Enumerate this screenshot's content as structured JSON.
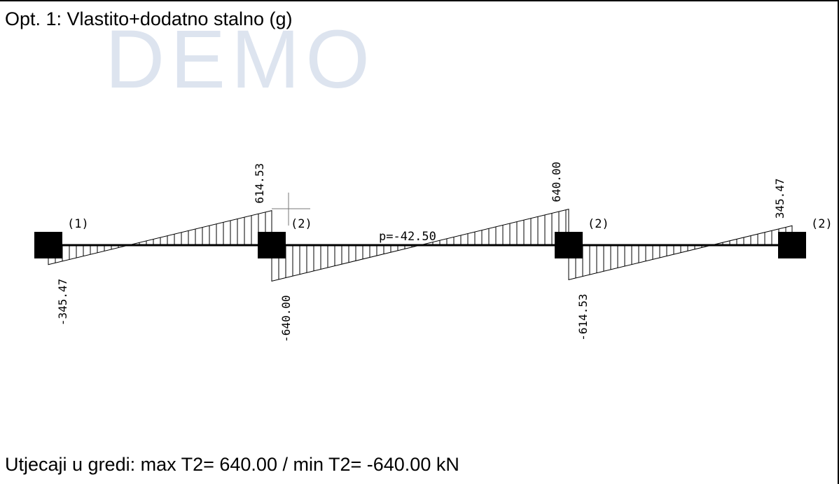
{
  "title": "Opt. 1: Vlastito+dodatno stalno (g)",
  "watermark": "DEMO",
  "summary": "Utjecaji u gredi: max T2= 640.00 / min T2= -640.00 kN",
  "load_label": "p=-42.50",
  "supports": [
    "(1)",
    "(2)",
    "(2)",
    "(2)"
  ],
  "spans": [
    {
      "left_value": "-345.47",
      "right_value": "614.53"
    },
    {
      "left_value": "-640.00",
      "right_value": "640.00"
    },
    {
      "left_value": "-614.53",
      "right_value": "345.47"
    }
  ],
  "chart_data": {
    "type": "line",
    "series": [
      {
        "values": [
          [
            0,
            -345.47
          ],
          [
            1,
            614.53
          ]
        ]
      },
      {
        "values": [
          [
            1,
            -640.0
          ],
          [
            2,
            640.0
          ]
        ]
      },
      {
        "values": [
          [
            2,
            -614.53
          ],
          [
            3,
            345.47
          ]
        ]
      }
    ]
  },
  "colors": {
    "ink": "#000000",
    "watermark": "#dde4ef",
    "background": "#ffffff"
  }
}
